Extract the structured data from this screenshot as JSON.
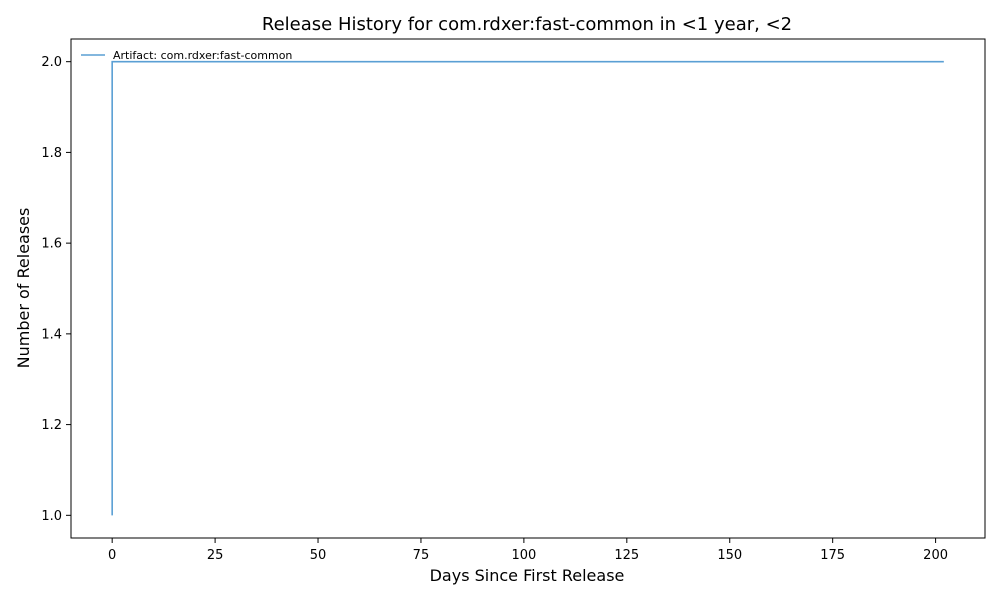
{
  "chart_data": {
    "type": "line",
    "title": "Release History for com.rdxer:fast-common in <1 year, <2",
    "xlabel": "Days Since First Release",
    "ylabel": "Number of Releases",
    "xlim": [
      -10,
      212
    ],
    "ylim": [
      0.95,
      2.05
    ],
    "x_ticks": [
      0,
      25,
      50,
      75,
      100,
      125,
      150,
      175,
      200
    ],
    "y_ticks": [
      1.0,
      1.2,
      1.4,
      1.6,
      1.8,
      2.0
    ],
    "grid": false,
    "legend_position": "top-left",
    "series": [
      {
        "name": "Artifact: com.rdxer:fast-common",
        "color": "#5a9fd4",
        "step": "post",
        "x": [
          0,
          0,
          202
        ],
        "y": [
          1,
          2,
          2
        ]
      }
    ]
  }
}
